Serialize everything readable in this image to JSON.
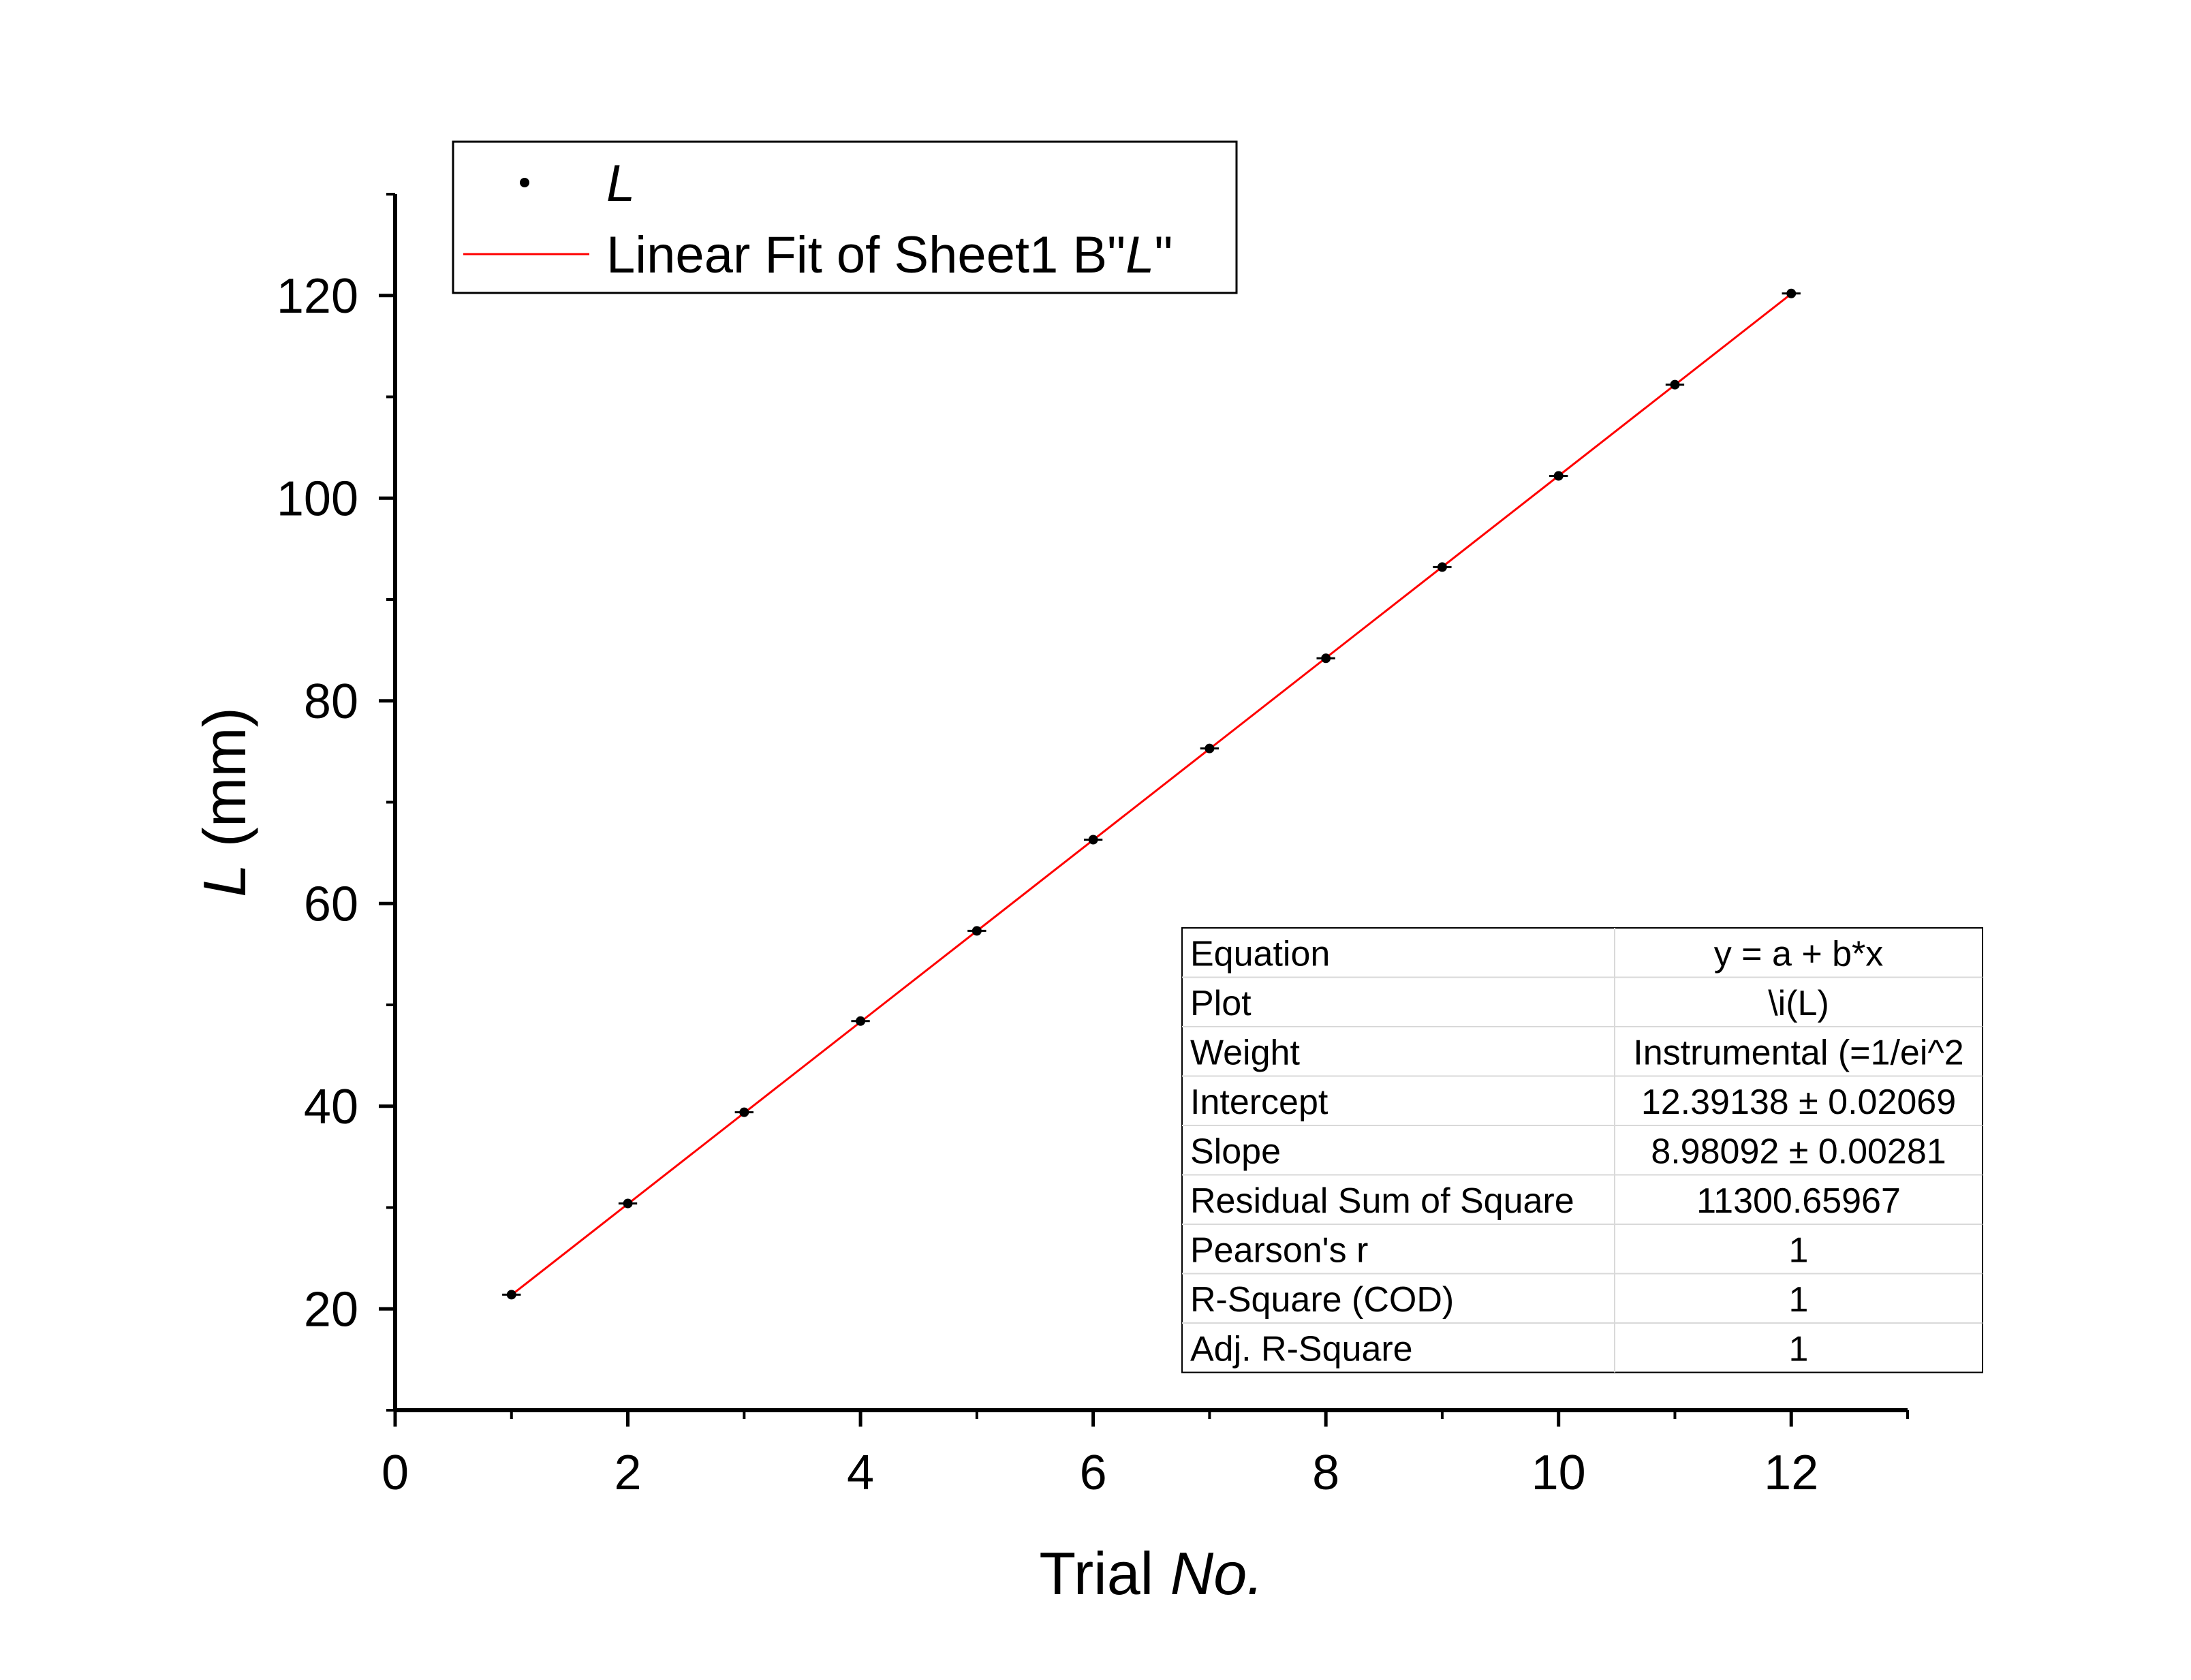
{
  "chart_data": {
    "type": "scatter",
    "xlabel": {
      "text": "Trial ",
      "italic": "No."
    },
    "ylabel": {
      "italic": "L",
      "text": " (mm)"
    },
    "xlim": [
      0,
      13
    ],
    "ylim": [
      10,
      130
    ],
    "xticks": [
      0,
      2,
      4,
      6,
      8,
      10,
      12
    ],
    "yticks": [
      20,
      40,
      60,
      80,
      100,
      120
    ],
    "grid": false,
    "legend_position": "top-left",
    "series": [
      {
        "name": "L",
        "kind": "points-with-errorbars",
        "color": "#000000",
        "x": [
          1,
          2,
          3,
          4,
          5,
          6,
          7,
          8,
          9,
          10,
          11,
          12
        ],
        "y": [
          21.4,
          30.4,
          39.4,
          48.4,
          57.3,
          66.3,
          75.3,
          84.2,
          93.2,
          102.2,
          111.2,
          120.2
        ],
        "x_error": 0.08
      },
      {
        "name": "Linear Fit of Sheet1 B\"L\"",
        "kind": "line",
        "color": "#ff0000",
        "x": [
          1,
          12
        ],
        "intercept": 12.39138,
        "slope": 8.98092
      }
    ],
    "legend": {
      "entries": [
        {
          "label": "L",
          "italic": true
        },
        {
          "prefix": "Linear Fit of Sheet1 B\"",
          "italic": "L",
          "suffix": "\""
        }
      ]
    },
    "fit_table": {
      "position": "bottom-right",
      "rows": [
        [
          "Equation",
          "y = a + b*x"
        ],
        [
          "Plot",
          "\\i(L)"
        ],
        [
          "Weight",
          "Instrumental (=1/ei^2"
        ],
        [
          "Intercept",
          "12.39138 ± 0.02069"
        ],
        [
          "Slope",
          "8.98092 ± 0.00281"
        ],
        [
          "Residual Sum of Square",
          "11300.65967"
        ],
        [
          "Pearson's r",
          "1"
        ],
        [
          "R-Square (COD)",
          "1"
        ],
        [
          "Adj. R-Square",
          "1"
        ]
      ]
    }
  }
}
